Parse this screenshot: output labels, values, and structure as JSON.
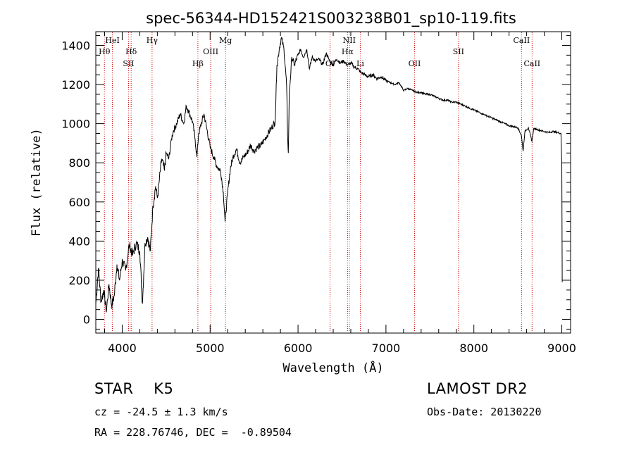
{
  "chart_data": {
    "type": "line",
    "title": "spec-56344-HD152421S003238B01_sp10-119.fits",
    "xlabel": "Wavelength (Å)",
    "ylabel": "Flux (relative)",
    "xlim": [
      3700,
      9100
    ],
    "ylim": [
      -70,
      1470
    ],
    "xticks": [
      4000,
      5000,
      6000,
      7000,
      8000,
      9000
    ],
    "xtick_labels": [
      "4000",
      "5000",
      "6000",
      "7000",
      "8000",
      "9000"
    ],
    "yticks": [
      0,
      200,
      400,
      600,
      800,
      1000,
      1200,
      1400
    ],
    "ytick_labels": [
      "0",
      "200",
      "400",
      "600",
      "800",
      "1000",
      "1200",
      "1400"
    ],
    "grid": false,
    "line_color": "#000000",
    "marker_color": "#cc0000",
    "series": [
      {
        "points": [
          [
            3700,
            80
          ],
          [
            3730,
            260
          ],
          [
            3760,
            90
          ],
          [
            3790,
            150
          ],
          [
            3820,
            40
          ],
          [
            3850,
            180
          ],
          [
            3880,
            70
          ],
          [
            3910,
            120
          ],
          [
            3940,
            280
          ],
          [
            3970,
            200
          ],
          [
            4000,
            300
          ],
          [
            4040,
            250
          ],
          [
            4080,
            380
          ],
          [
            4120,
            330
          ],
          [
            4160,
            390
          ],
          [
            4200,
            350
          ],
          [
            4230,
            80
          ],
          [
            4260,
            390
          ],
          [
            4290,
            420
          ],
          [
            4320,
            350
          ],
          [
            4350,
            580
          ],
          [
            4380,
            680
          ],
          [
            4400,
            620
          ],
          [
            4420,
            700
          ],
          [
            4450,
            820
          ],
          [
            4480,
            760
          ],
          [
            4500,
            850
          ],
          [
            4530,
            820
          ],
          [
            4560,
            920
          ],
          [
            4580,
            960
          ],
          [
            4620,
            1000
          ],
          [
            4660,
            1050
          ],
          [
            4700,
            1000
          ],
          [
            4730,
            1090
          ],
          [
            4760,
            1060
          ],
          [
            4800,
            1010
          ],
          [
            4830,
            920
          ],
          [
            4850,
            830
          ],
          [
            4870,
            950
          ],
          [
            4900,
            1000
          ],
          [
            4930,
            1050
          ],
          [
            4960,
            980
          ],
          [
            5000,
            880
          ],
          [
            5040,
            830
          ],
          [
            5080,
            780
          ],
          [
            5120,
            760
          ],
          [
            5150,
            650
          ],
          [
            5170,
            500
          ],
          [
            5200,
            650
          ],
          [
            5230,
            770
          ],
          [
            5260,
            830
          ],
          [
            5300,
            870
          ],
          [
            5340,
            800
          ],
          [
            5380,
            830
          ],
          [
            5420,
            850
          ],
          [
            5460,
            890
          ],
          [
            5500,
            860
          ],
          [
            5540,
            880
          ],
          [
            5580,
            890
          ],
          [
            5620,
            920
          ],
          [
            5660,
            950
          ],
          [
            5700,
            980
          ],
          [
            5740,
            1010
          ],
          [
            5760,
            1300
          ],
          [
            5790,
            1390
          ],
          [
            5810,
            1440
          ],
          [
            5840,
            1380
          ],
          [
            5870,
            1200
          ],
          [
            5880,
            960
          ],
          [
            5890,
            850
          ],
          [
            5900,
            1150
          ],
          [
            5930,
            1340
          ],
          [
            5960,
            1300
          ],
          [
            6000,
            1350
          ],
          [
            6030,
            1380
          ],
          [
            6060,
            1340
          ],
          [
            6100,
            1380
          ],
          [
            6130,
            1280
          ],
          [
            6160,
            1340
          ],
          [
            6200,
            1320
          ],
          [
            6240,
            1330
          ],
          [
            6280,
            1300
          ],
          [
            6320,
            1360
          ],
          [
            6360,
            1320
          ],
          [
            6400,
            1300
          ],
          [
            6440,
            1330
          ],
          [
            6480,
            1310
          ],
          [
            6520,
            1320
          ],
          [
            6560,
            1300
          ],
          [
            6600,
            1310
          ],
          [
            6640,
            1290
          ],
          [
            6680,
            1280
          ],
          [
            6720,
            1260
          ],
          [
            6760,
            1250
          ],
          [
            6800,
            1240
          ],
          [
            6850,
            1250
          ],
          [
            6900,
            1230
          ],
          [
            6950,
            1240
          ],
          [
            7000,
            1220
          ],
          [
            7050,
            1210
          ],
          [
            7100,
            1200
          ],
          [
            7150,
            1210
          ],
          [
            7200,
            1170
          ],
          [
            7250,
            1180
          ],
          [
            7300,
            1170
          ],
          [
            7350,
            1160
          ],
          [
            7400,
            1160
          ],
          [
            7450,
            1150
          ],
          [
            7500,
            1150
          ],
          [
            7550,
            1140
          ],
          [
            7600,
            1130
          ],
          [
            7650,
            1120
          ],
          [
            7700,
            1120
          ],
          [
            7750,
            1110
          ],
          [
            7800,
            1110
          ],
          [
            7850,
            1100
          ],
          [
            7900,
            1090
          ],
          [
            7950,
            1080
          ],
          [
            8000,
            1070
          ],
          [
            8050,
            1060
          ],
          [
            8100,
            1050
          ],
          [
            8150,
            1040
          ],
          [
            8200,
            1030
          ],
          [
            8250,
            1020
          ],
          [
            8300,
            1010
          ],
          [
            8350,
            1000
          ],
          [
            8400,
            990
          ],
          [
            8450,
            985
          ],
          [
            8500,
            980
          ],
          [
            8540,
            940
          ],
          [
            8560,
            860
          ],
          [
            8580,
            960
          ],
          [
            8620,
            980
          ],
          [
            8660,
            910
          ],
          [
            8680,
            975
          ],
          [
            8720,
            970
          ],
          [
            8760,
            965
          ],
          [
            8800,
            960
          ],
          [
            8850,
            955
          ],
          [
            8900,
            960
          ],
          [
            8950,
            955
          ],
          [
            8990,
            950
          ],
          [
            9000,
            800
          ],
          [
            9005,
            190
          ]
        ]
      }
    ],
    "lines": [
      {
        "label": "HeI",
        "wavelength": 3889,
        "label_row": 1
      },
      {
        "label": "Hθ",
        "wavelength": 3798,
        "label_row": 2
      },
      {
        "label": "Hδ",
        "wavelength": 4102,
        "label_row": 2
      },
      {
        "label": "SII",
        "wavelength": 4072,
        "label_row": 3
      },
      {
        "label": "Hγ",
        "wavelength": 4340,
        "label_row": 1
      },
      {
        "label": "Hβ",
        "wavelength": 4861,
        "label_row": 3
      },
      {
        "label": "OIII",
        "wavelength": 5007,
        "label_row": 2
      },
      {
        "label": "Mg",
        "wavelength": 5175,
        "label_row": 1
      },
      {
        "label": "OI",
        "wavelength": 6364,
        "label_row": 3
      },
      {
        "label": "NII",
        "wavelength": 6583,
        "label_row": 1
      },
      {
        "label": "Hα",
        "wavelength": 6563,
        "label_row": 2
      },
      {
        "label": "Li",
        "wavelength": 6708,
        "label_row": 3
      },
      {
        "label": "OII",
        "wavelength": 7325,
        "label_row": 3
      },
      {
        "label": "SII",
        "wavelength": 7825,
        "label_row": 2
      },
      {
        "label": "CaII",
        "wavelength": 8542,
        "label_row": 1
      },
      {
        "label": "CaII",
        "wavelength": 8662,
        "label_row": 3
      }
    ]
  },
  "info": {
    "object_class": "STAR    K5",
    "survey": "LAMOST DR2",
    "redshift": "cz = -24.5 ± 1.3 km/s",
    "obs_date": "Obs-Date: 20130220",
    "coords": "RA = 228.76746, DEC =  -0.89504"
  }
}
